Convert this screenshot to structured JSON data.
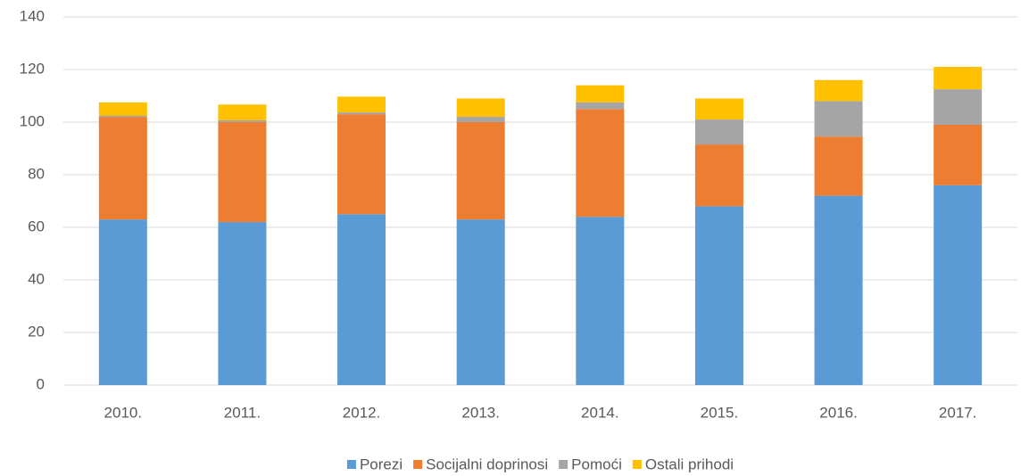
{
  "chart_data": {
    "type": "stacked_bar",
    "categories": [
      "2010.",
      "2011.",
      "2012.",
      "2013.",
      "2014.",
      "2015.",
      "2016.",
      "2017."
    ],
    "series": [
      {
        "name": "Porezi",
        "color": "#5b9bd5",
        "values": [
          63,
          62,
          65,
          63,
          64,
          68,
          72,
          76
        ]
      },
      {
        "name": "Socijalni doprinosi",
        "color": "#ed7d31",
        "values": [
          39,
          38,
          38,
          37,
          41,
          23.5,
          22.5,
          23
        ]
      },
      {
        "name": "Pomoći",
        "color": "#a5a5a5",
        "values": [
          0.5,
          0.7,
          0.7,
          2,
          2.5,
          9.5,
          13.5,
          13.5
        ]
      },
      {
        "name": "Ostali prihodi",
        "color": "#ffc000",
        "values": [
          5,
          6,
          6,
          7,
          6.5,
          8,
          8,
          8.5
        ]
      }
    ],
    "ylim": [
      0,
      140
    ],
    "yticks": [
      0,
      20,
      40,
      60,
      80,
      100,
      120,
      140
    ],
    "grid": true,
    "legend": "bottom"
  }
}
